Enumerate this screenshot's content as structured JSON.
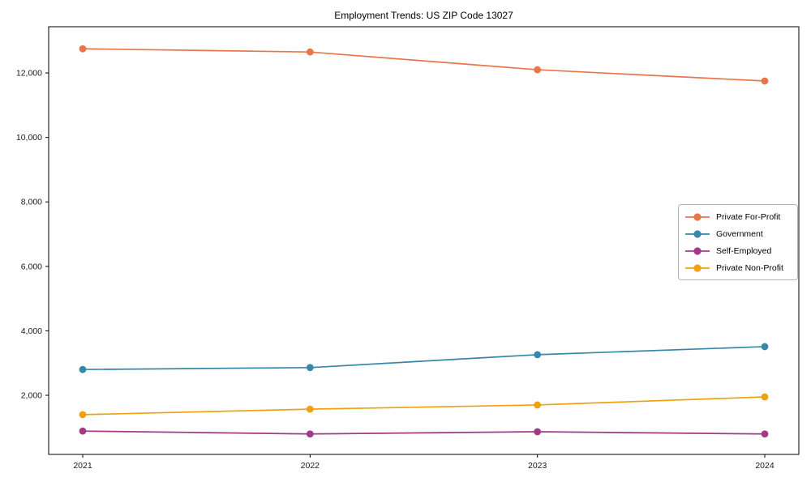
{
  "window": {
    "background": "#ffffff"
  },
  "chart_data": {
    "type": "line",
    "title": "Employment Trends: US ZIP Code 13027",
    "xlabel": "",
    "ylabel": "",
    "categories": [
      "2021",
      "2022",
      "2023",
      "2024"
    ],
    "series": [
      {
        "name": "Private For-Profit",
        "color": "#e8764a",
        "values": [
          12750,
          12650,
          12100,
          11750
        ]
      },
      {
        "name": "Government",
        "color": "#3787a8",
        "values": [
          2800,
          2860,
          3260,
          3510
        ]
      },
      {
        "name": "Self-Employed",
        "color": "#a23b85",
        "values": [
          890,
          800,
          870,
          800
        ]
      },
      {
        "name": "Private Non-Profit",
        "color": "#f0a10e",
        "values": [
          1400,
          1570,
          1700,
          1950
        ]
      }
    ],
    "ylim": [
      166,
      13434
    ],
    "yticks": [
      2000,
      4000,
      6000,
      8000,
      10000,
      12000
    ],
    "ytick_labels": [
      "2,000",
      "4,000",
      "6,000",
      "8,000",
      "10,000",
      "12,000"
    ],
    "grid": false,
    "legend_position": "center right",
    "axis_color": "#000000",
    "tick_label_color": "#1a1a1a",
    "marker": "circle"
  }
}
